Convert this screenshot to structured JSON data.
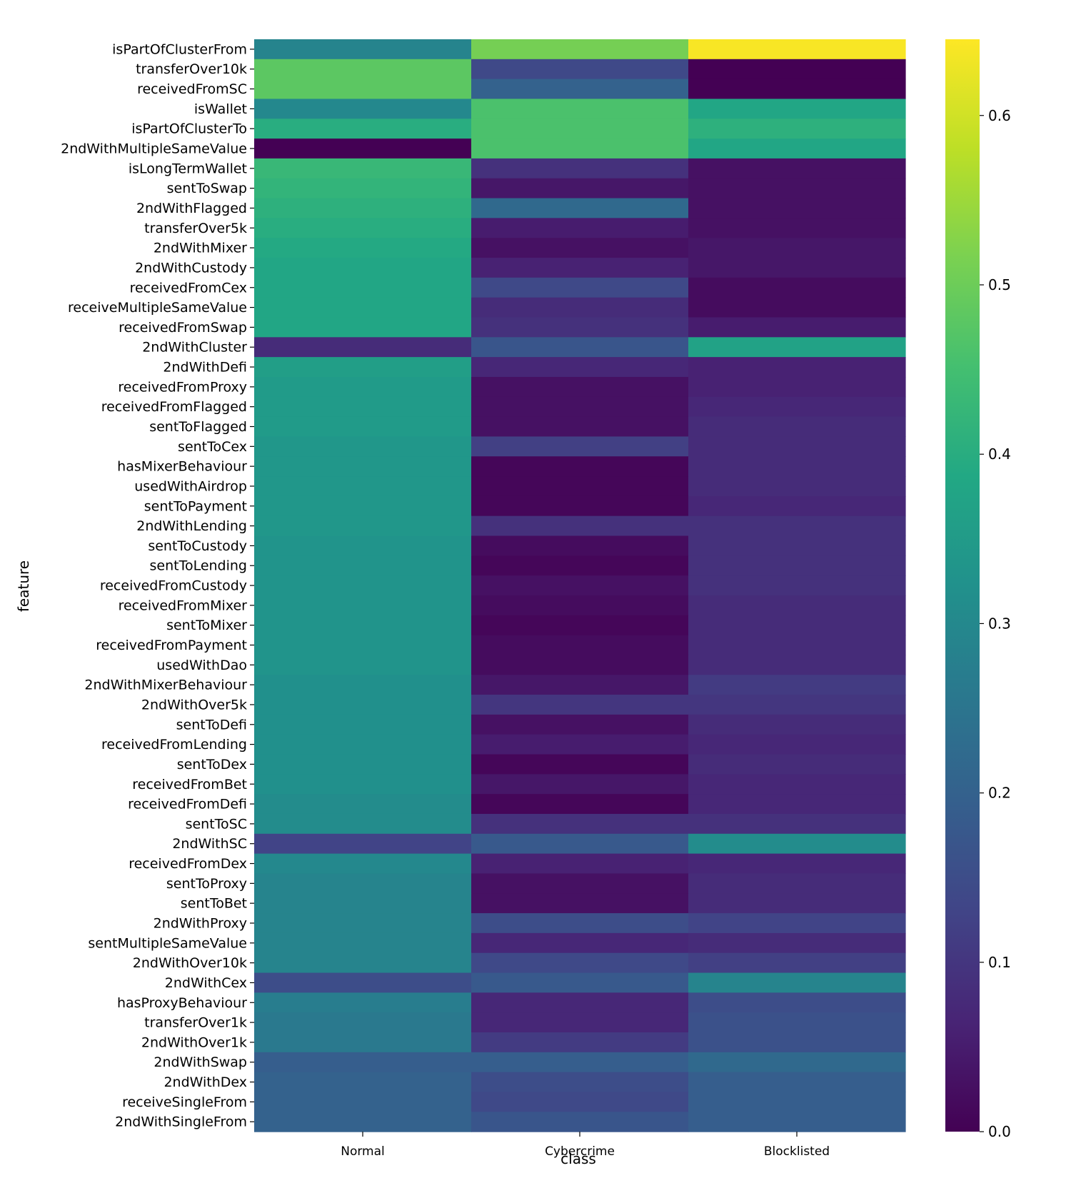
{
  "chart_data": {
    "type": "heatmap",
    "colormap": "viridis",
    "xlabel": "class",
    "ylabel": "feature",
    "columns": [
      "Normal",
      "Cybercrime",
      "Blocklisted"
    ],
    "rows": [
      "isPartOfClusterFrom",
      "transferOver10k",
      "receivedFromSC",
      "isWallet",
      "isPartOfClusterTo",
      "2ndWithMultipleSameValue",
      "isLongTermWallet",
      "sentToSwap",
      "2ndWithFlagged",
      "transferOver5k",
      "2ndWithMixer",
      "2ndWithCustody",
      "receivedFromCex",
      "receiveMultipleSameValue",
      "receivedFromSwap",
      "2ndWithCluster",
      "2ndWithDefi",
      "receivedFromProxy",
      "receivedFromFlagged",
      "sentToFlagged",
      "sentToCex",
      "hasMixerBehaviour",
      "usedWithAirdrop",
      "sentToPayment",
      "2ndWithLending",
      "sentToCustody",
      "sentToLending",
      "receivedFromCustody",
      "receivedFromMixer",
      "sentToMixer",
      "receivedFromPayment",
      "usedWithDao",
      "2ndWithMixerBehaviour",
      "2ndWithOver5k",
      "sentToDefi",
      "receivedFromLending",
      "sentToDex",
      "receivedFromBet",
      "receivedFromDefi",
      "sentToSC",
      "2ndWithSC",
      "receivedFromDex",
      "sentToProxy",
      "sentToBet",
      "2ndWithProxy",
      "sentMultipleSameValue",
      "2ndWithOver10k",
      "2ndWithCex",
      "hasProxyBehaviour",
      "transferOver1k",
      "2ndWithOver1k",
      "2ndWithSwap",
      "2ndWithDex",
      "receiveSingleFrom",
      "2ndWithSingleFrom"
    ],
    "values": [
      [
        0.29,
        0.51,
        0.64
      ],
      [
        0.48,
        0.14,
        0.0
      ],
      [
        0.48,
        0.2,
        0.0
      ],
      [
        0.3,
        0.46,
        0.38
      ],
      [
        0.4,
        0.46,
        0.41
      ],
      [
        0.0,
        0.46,
        0.38
      ],
      [
        0.43,
        0.09,
        0.03
      ],
      [
        0.42,
        0.04,
        0.03
      ],
      [
        0.41,
        0.22,
        0.03
      ],
      [
        0.4,
        0.05,
        0.03
      ],
      [
        0.39,
        0.03,
        0.04
      ],
      [
        0.38,
        0.06,
        0.04
      ],
      [
        0.38,
        0.14,
        0.02
      ],
      [
        0.38,
        0.08,
        0.02
      ],
      [
        0.38,
        0.09,
        0.05
      ],
      [
        0.08,
        0.17,
        0.37
      ],
      [
        0.36,
        0.07,
        0.06
      ],
      [
        0.35,
        0.03,
        0.06
      ],
      [
        0.35,
        0.03,
        0.07
      ],
      [
        0.35,
        0.03,
        0.08
      ],
      [
        0.34,
        0.12,
        0.08
      ],
      [
        0.34,
        0.01,
        0.08
      ],
      [
        0.34,
        0.01,
        0.08
      ],
      [
        0.34,
        0.01,
        0.07
      ],
      [
        0.34,
        0.09,
        0.09
      ],
      [
        0.33,
        0.02,
        0.09
      ],
      [
        0.33,
        0.01,
        0.09
      ],
      [
        0.33,
        0.03,
        0.09
      ],
      [
        0.33,
        0.02,
        0.08
      ],
      [
        0.33,
        0.01,
        0.08
      ],
      [
        0.33,
        0.02,
        0.08
      ],
      [
        0.33,
        0.02,
        0.08
      ],
      [
        0.32,
        0.04,
        0.11
      ],
      [
        0.32,
        0.1,
        0.1
      ],
      [
        0.32,
        0.03,
        0.08
      ],
      [
        0.32,
        0.05,
        0.07
      ],
      [
        0.32,
        0.01,
        0.08
      ],
      [
        0.32,
        0.04,
        0.07
      ],
      [
        0.31,
        0.01,
        0.07
      ],
      [
        0.31,
        0.09,
        0.09
      ],
      [
        0.13,
        0.18,
        0.31
      ],
      [
        0.3,
        0.06,
        0.07
      ],
      [
        0.29,
        0.03,
        0.08
      ],
      [
        0.29,
        0.03,
        0.08
      ],
      [
        0.29,
        0.15,
        0.13
      ],
      [
        0.29,
        0.07,
        0.08
      ],
      [
        0.29,
        0.14,
        0.12
      ],
      [
        0.15,
        0.18,
        0.29
      ],
      [
        0.27,
        0.07,
        0.15
      ],
      [
        0.26,
        0.07,
        0.16
      ],
      [
        0.26,
        0.11,
        0.16
      ],
      [
        0.19,
        0.19,
        0.22
      ],
      [
        0.2,
        0.15,
        0.19
      ],
      [
        0.2,
        0.14,
        0.19
      ],
      [
        0.2,
        0.17,
        0.19
      ]
    ],
    "colorbar": {
      "range": [
        0.0,
        0.645
      ],
      "ticks": [
        0.0,
        0.1,
        0.2,
        0.3,
        0.4,
        0.5,
        0.6
      ],
      "tick_labels": [
        "0.0",
        "0.1",
        "0.2",
        "0.3",
        "0.4",
        "0.5",
        "0.6"
      ]
    }
  }
}
